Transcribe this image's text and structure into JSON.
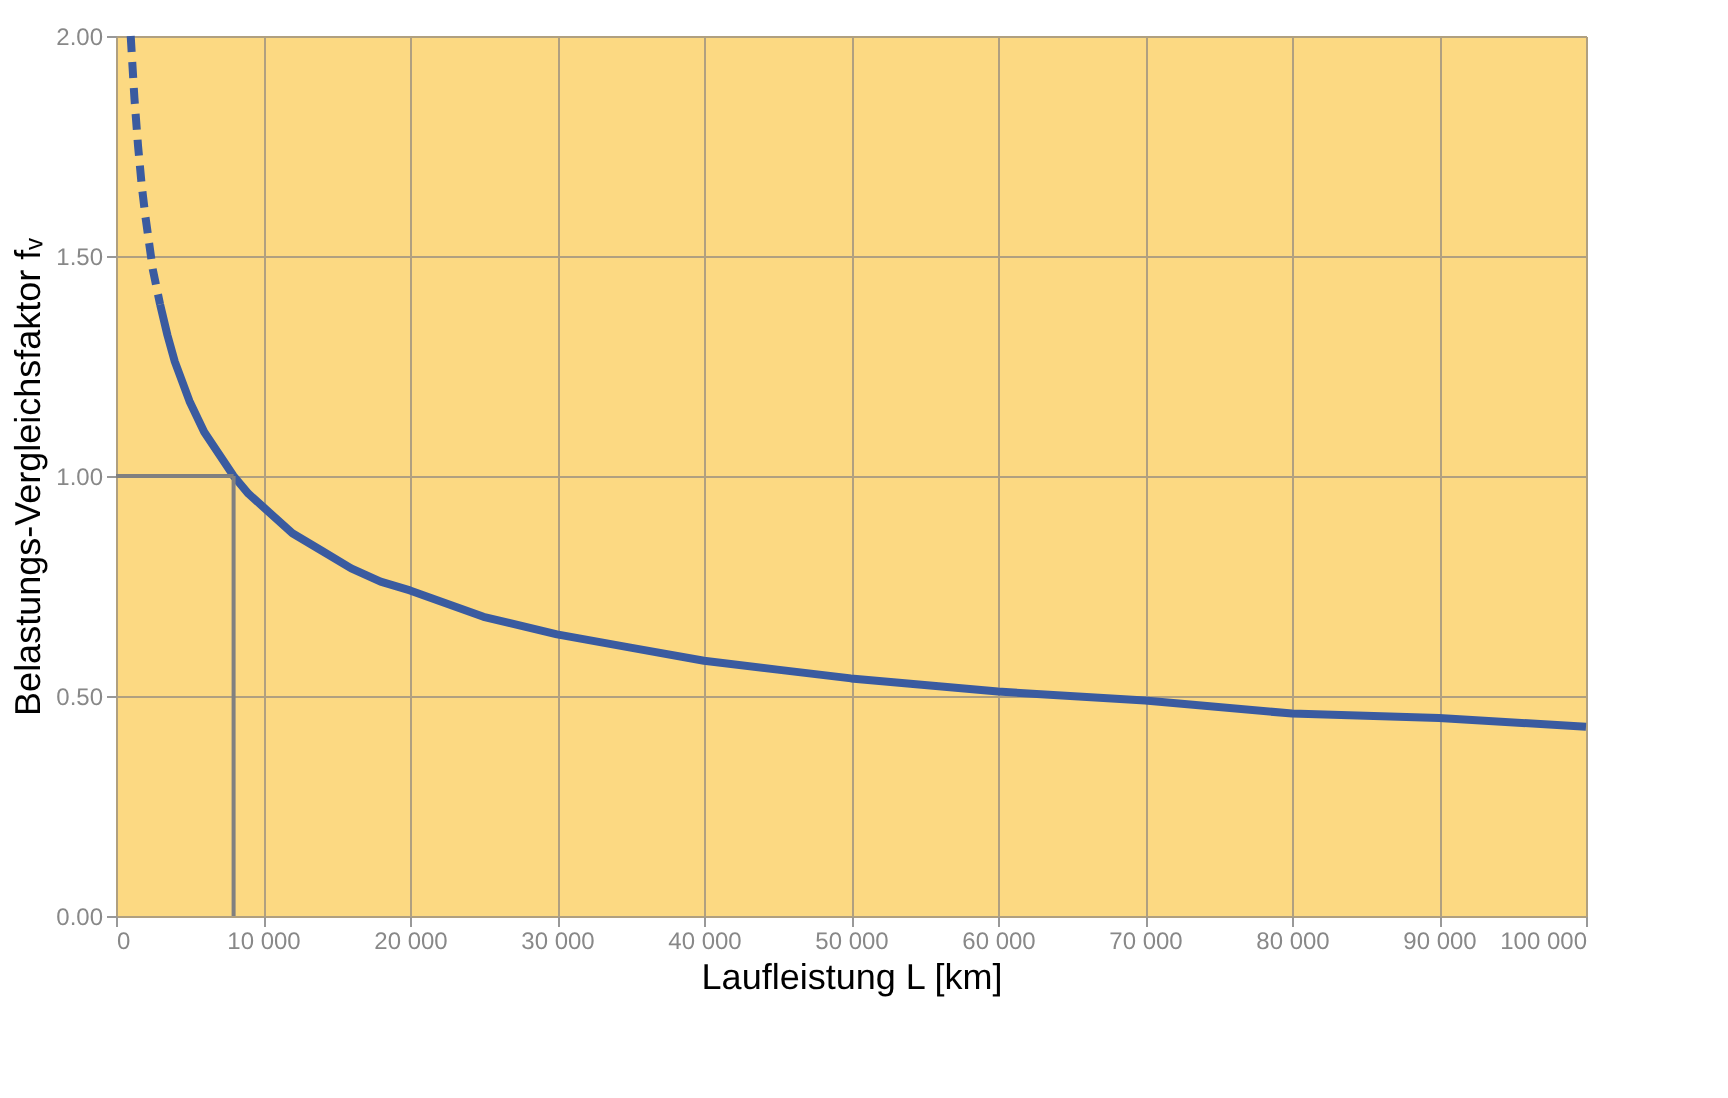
{
  "chart_data": {
    "type": "line",
    "xlabel": "Laufleistung L [km]",
    "ylabel": "Belastungs-Vergleichsfaktor fᵥ",
    "xlim": [
      0,
      100000
    ],
    "ylim": [
      0,
      2
    ],
    "xticks": [
      0,
      {
        "value": 10000,
        "label": "10 000"
      },
      {
        "value": 20000,
        "label": "20 000"
      },
      {
        "value": 30000,
        "label": "30 000"
      },
      {
        "value": 40000,
        "label": "40 000"
      },
      {
        "value": 50000,
        "label": "50 000"
      },
      {
        "value": 60000,
        "label": "60 000"
      },
      {
        "value": 70000,
        "label": "70 000"
      },
      {
        "value": 80000,
        "label": "80 000"
      },
      {
        "value": 90000,
        "label": "90 000"
      },
      {
        "value": 100000,
        "label": "100 000"
      }
    ],
    "yticks": [
      {
        "value": 0,
        "label": "0.00"
      },
      {
        "value": 0.5,
        "label": "0.50"
      },
      {
        "value": 1,
        "label": "1.00"
      },
      {
        "value": 1.5,
        "label": "1.50"
      },
      {
        "value": 2,
        "label": "2.00"
      }
    ],
    "grid": true,
    "series": [
      {
        "type": "line",
        "color": "#3a5ba0",
        "line_style": "dashed",
        "x": [
          1000,
          1250,
          1500,
          1750,
          2000,
          2500,
          3000
        ],
        "values": [
          2.0,
          1.86,
          1.75,
          1.66,
          1.59,
          1.47,
          1.39
        ]
      },
      {
        "type": "line",
        "color": "#3a5ba0",
        "line_style": "solid",
        "x": [
          3000,
          3500,
          4000,
          5000,
          6000,
          7000,
          8000,
          9000,
          10000,
          12000,
          14000,
          16000,
          18000,
          20000,
          25000,
          30000,
          35000,
          40000,
          45000,
          50000,
          60000,
          70000,
          80000,
          90000,
          100000
        ],
        "values": [
          1.39,
          1.32,
          1.26,
          1.17,
          1.1,
          1.05,
          1.0,
          0.96,
          0.93,
          0.87,
          0.83,
          0.79,
          0.76,
          0.74,
          0.68,
          0.64,
          0.61,
          0.58,
          0.56,
          0.54,
          0.51,
          0.49,
          0.46,
          0.45,
          0.43
        ]
      },
      {
        "type": "line",
        "color": "#808080",
        "line_style": "solid",
        "x": [
          0,
          8000
        ],
        "values": [
          1,
          1
        ]
      },
      {
        "type": "line",
        "color": "#808080",
        "line_style": "solid",
        "x": [
          8000,
          8000
        ],
        "values": [
          0,
          1
        ]
      }
    ]
  }
}
